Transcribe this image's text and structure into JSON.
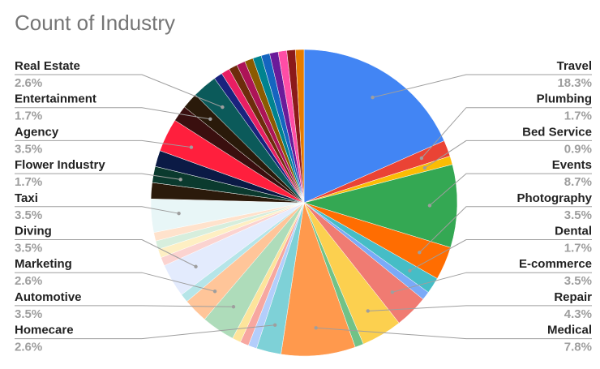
{
  "chart_data": {
    "type": "pie",
    "title": "Count of Industry",
    "categories": [
      "Travel",
      "Plumbing",
      "Bed Service",
      "Events",
      "Photography",
      "Dental",
      null,
      "E-commerce",
      "Repair",
      null,
      "Medical",
      "Homecare",
      null,
      null,
      null,
      "Automotive",
      "Marketing",
      null,
      "Diving",
      null,
      null,
      null,
      null,
      "Taxi",
      null,
      "Flower Industry",
      null,
      "Agency",
      null,
      "Entertainment",
      "Real Estate",
      null,
      null,
      null,
      null,
      null,
      null,
      null,
      null,
      null,
      null,
      null
    ],
    "values": [
      18.3,
      1.7,
      0.9,
      8.7,
      3.5,
      1.7,
      0.9,
      3.5,
      4.3,
      0.9,
      7.8,
      2.6,
      0.9,
      0.9,
      0.9,
      3.5,
      2.6,
      0.9,
      3.5,
      0.9,
      0.9,
      0.9,
      0.9,
      3.5,
      1.7,
      1.7,
      1.7,
      3.5,
      1.7,
      1.7,
      2.6,
      0.9,
      0.9,
      0.9,
      0.9,
      0.9,
      0.9,
      0.9,
      0.9,
      0.9,
      0.9,
      0.9
    ],
    "value_labels": [
      "18.3%",
      "1.7%",
      "0.9%",
      "8.7%",
      "3.5%",
      "1.7%",
      null,
      "3.5%",
      "4.3%",
      null,
      "7.8%",
      "2.6%",
      null,
      null,
      null,
      "3.5%",
      "2.6%",
      null,
      "3.5%",
      null,
      null,
      null,
      null,
      "3.5%",
      null,
      "1.7%",
      null,
      "3.5%",
      null,
      "1.7%",
      "2.6%",
      null,
      null,
      null,
      null,
      null,
      null,
      null,
      null,
      null,
      null,
      null
    ],
    "colors": [
      "#4285f4",
      "#ea4335",
      "#fbbc04",
      "#34a853",
      "#ff6d01",
      "#46bdc6",
      "#7baaf7",
      "#f07b72",
      "#fcd04f",
      "#71c287",
      "#ff994d",
      "#7ed1d7",
      "#b3cefb",
      "#f7a7a0",
      "#fde49b",
      "#aedcba",
      "#ffc599",
      "#b5e5e8",
      "#e3ebfd",
      "#fbd3d0",
      "#feefc3",
      "#d7eedd",
      "#ffe2cc",
      "#e8f6f7",
      "#2b1a0b",
      "#0b3a2e",
      "#0b1a45",
      "#ff1f3d",
      "#3a0f0f",
      "#2a1a0a",
      "#0b5a5a",
      "#1a237e",
      "#e91e63",
      "#6d2c0c",
      "#ad1457",
      "#8b5a00",
      "#00838f",
      "#1565c0",
      "#6a1b9a",
      "#ff4da6",
      "#8b1a1a",
      "#e67c00"
    ]
  }
}
